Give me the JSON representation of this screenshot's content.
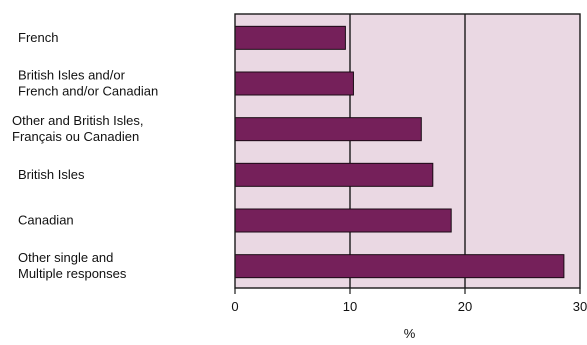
{
  "chart_data": {
    "type": "bar",
    "orientation": "horizontal",
    "categories": [
      [
        "French"
      ],
      [
        "British Isles and/or",
        "French and/or Canadian"
      ],
      [
        "Other and British Isles,",
        "Français ou Canadien"
      ],
      [
        "British Isles"
      ],
      [
        "Canadian"
      ],
      [
        "Other single and",
        "Multiple responses"
      ]
    ],
    "values": [
      9.6,
      10.3,
      16.2,
      17.2,
      18.8,
      28.6
    ],
    "xlabel": "%",
    "xlim": [
      0,
      30
    ],
    "xticks": [
      0,
      10,
      20,
      30
    ],
    "tick_labels": [
      "0",
      "10",
      "20",
      "30"
    ],
    "grid": "vertical",
    "colors": {
      "bar_fill": "#75205a",
      "bar_stroke": "#1a0a14",
      "plot_background": "#ead8e3",
      "axis": "#1a1a1a"
    }
  }
}
